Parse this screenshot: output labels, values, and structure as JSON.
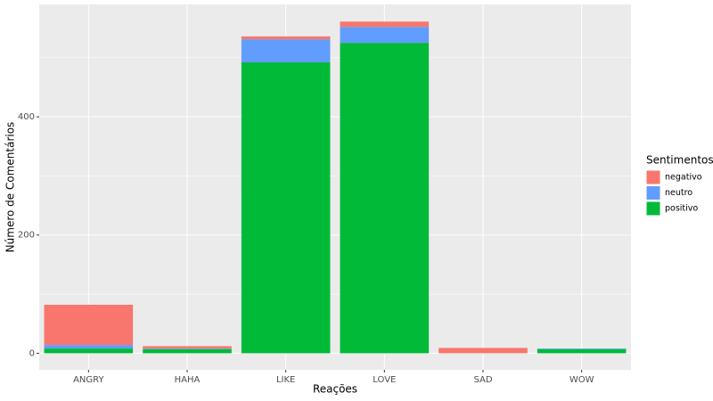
{
  "chart_data": {
    "type": "stacked_bar",
    "x_label": "Reações",
    "y_label": "Número de Comentários",
    "legend_title": "Sentimentos",
    "legend_position": "right",
    "categories": [
      "ANGRY",
      "HAHA",
      "LIKE",
      "LOVE",
      "SAD",
      "WOW"
    ],
    "series": [
      {
        "name": "positivo",
        "color": "#00BA38",
        "values": [
          8,
          7,
          492,
          525,
          0,
          7
        ]
      },
      {
        "name": "neutro",
        "color": "#619CFF",
        "values": [
          6,
          1,
          39,
          27,
          0,
          1
        ]
      },
      {
        "name": "negativo",
        "color": "#F8766D",
        "values": [
          68,
          4,
          5,
          9,
          9,
          0
        ]
      }
    ],
    "ylim": [
      -28,
      590
    ],
    "yticks": [
      0,
      200,
      400
    ],
    "minor_yticks": [
      100,
      300,
      500
    ],
    "grid": true
  }
}
